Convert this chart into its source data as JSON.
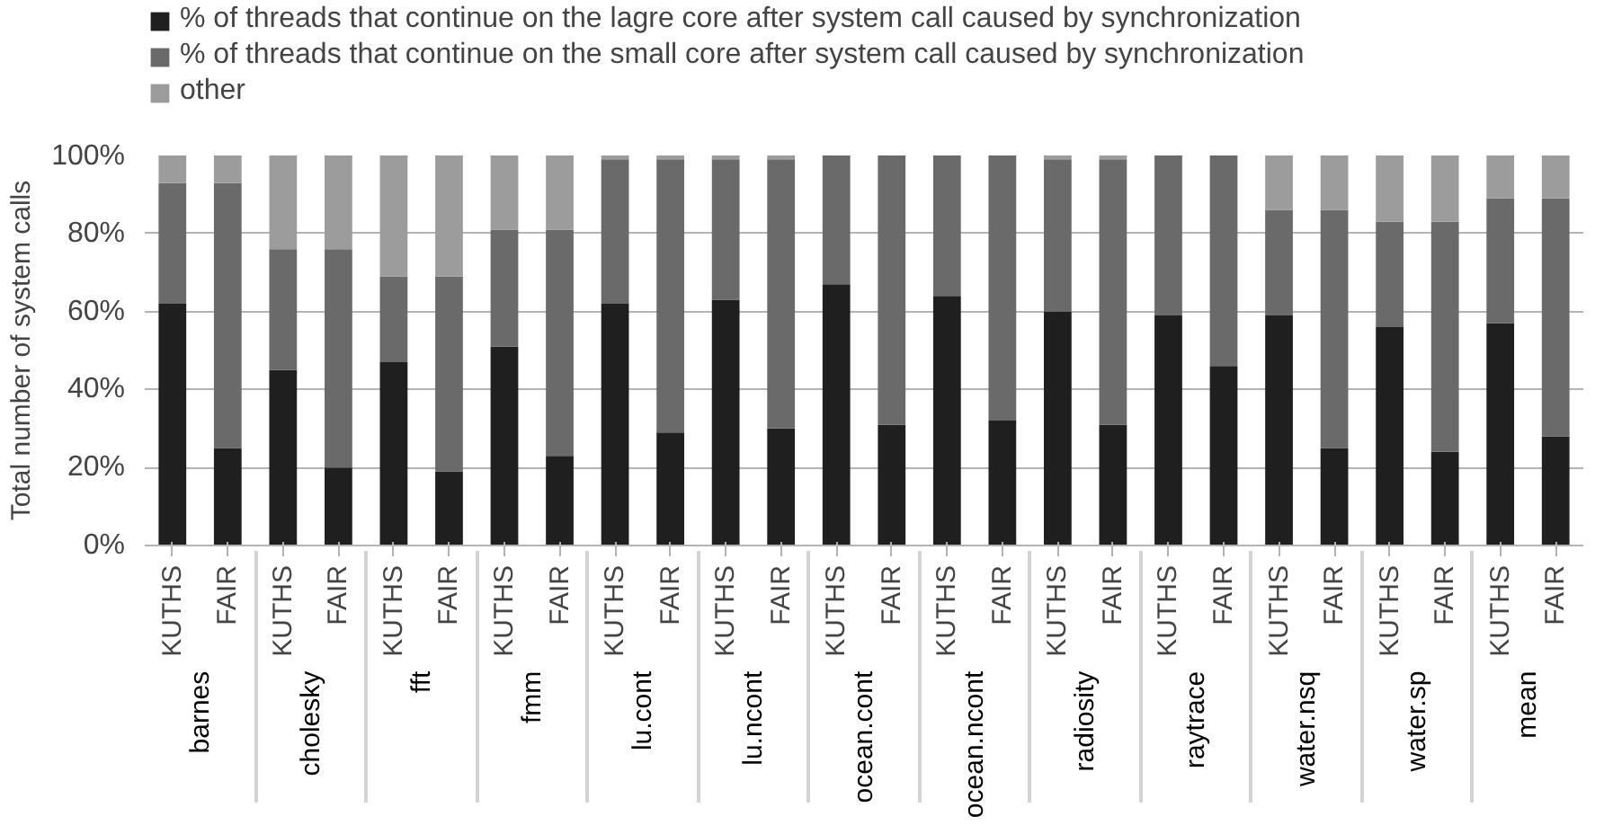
{
  "chart_data": {
    "type": "bar",
    "stacked": true,
    "ylabel": "Total number of system calls",
    "categories": [
      "KUTHS",
      "FAIR",
      "KUTHS",
      "FAIR",
      "KUTHS",
      "FAIR",
      "KUTHS",
      "FAIR",
      "KUTHS",
      "FAIR",
      "KUTHS",
      "FAIR",
      "KUTHS",
      "FAIR",
      "KUTHS",
      "FAIR",
      "KUTHS",
      "FAIR",
      "KUTHS",
      "FAIR",
      "KUTHS",
      "FAIR",
      "KUTHS",
      "FAIR",
      "KUTHS",
      "FAIR"
    ],
    "annotations": [
      "barnes",
      "cholesky",
      "fft",
      "fmm",
      "lu.cont",
      "lu.ncont",
      "ocean.cont",
      "ocean.ncont",
      "radiosity",
      "raytrace",
      "water.nsq",
      "water.sp",
      "mean"
    ],
    "series": [
      {
        "name": "% of threads that continue on the lagre core after system call caused by synchronization",
        "color": "#1f1f1f",
        "values": [
          62,
          25,
          45,
          20,
          47,
          19,
          51,
          23,
          62,
          29,
          63,
          30,
          67,
          31,
          64,
          32,
          60,
          31,
          59,
          46,
          59,
          25,
          56,
          24,
          57,
          28
        ]
      },
      {
        "name": "% of threads that continue on the small core after system call caused by synchronization",
        "color": "#6a6a6a",
        "values": [
          31,
          68,
          31,
          56,
          22,
          50,
          30,
          58,
          37,
          70,
          36,
          69,
          33,
          69,
          36,
          68,
          39,
          68,
          41,
          54,
          27,
          61,
          27,
          59,
          32,
          61
        ]
      },
      {
        "name": "other",
        "color": "#9c9c9c",
        "values": [
          7,
          7,
          24,
          24,
          31,
          31,
          19,
          19,
          1,
          1,
          1,
          1,
          0,
          0,
          0,
          0,
          1,
          1,
          0,
          0,
          14,
          14,
          17,
          17,
          11,
          11
        ]
      }
    ],
    "ylim": [
      0,
      100
    ],
    "yticks": [
      {
        "value": 0,
        "label": "0%"
      },
      {
        "value": 20,
        "label": "20%"
      },
      {
        "value": 40,
        "label": "40%"
      },
      {
        "value": 60,
        "label": "60%"
      },
      {
        "value": 80,
        "label": "80%"
      },
      {
        "value": 100,
        "label": "100%"
      }
    ],
    "grid": "y",
    "legend": "top"
  }
}
